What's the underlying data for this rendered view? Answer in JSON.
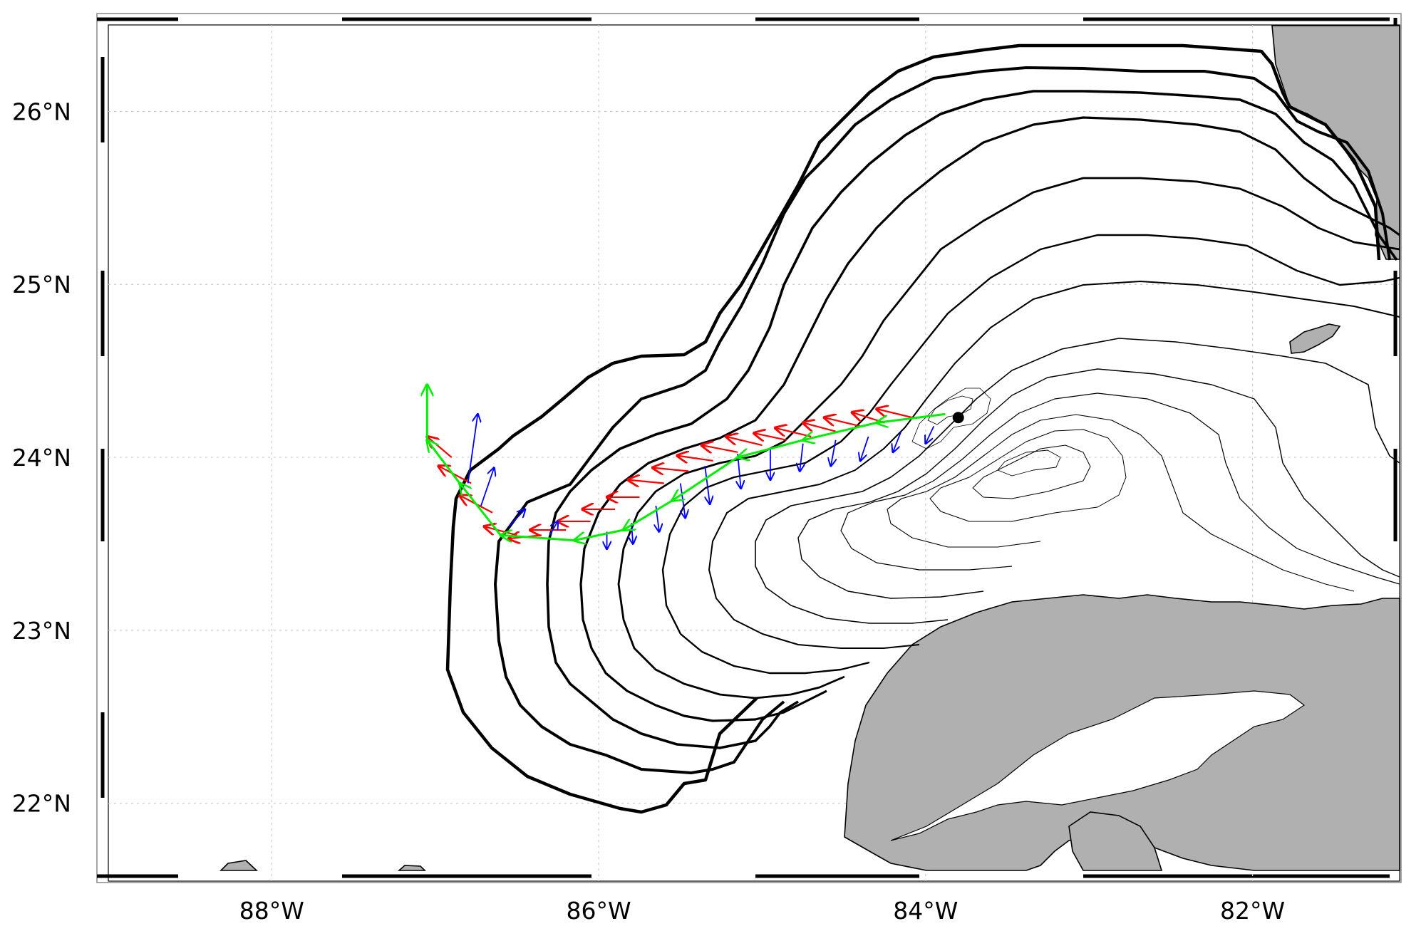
{
  "map": {
    "lon_range": [
      -89.0,
      -81.1
    ],
    "lat_range": [
      21.55,
      26.5
    ],
    "lon_ticks": [
      {
        "value": -88,
        "label": "88°W"
      },
      {
        "value": -86,
        "label": "86°W"
      },
      {
        "value": -84,
        "label": "84°W"
      },
      {
        "value": -82,
        "label": "82°W"
      }
    ],
    "lat_ticks": [
      {
        "value": 26,
        "label": "26°N"
      },
      {
        "value": 25,
        "label": "25°N"
      },
      {
        "value": 24,
        "label": "24°N"
      },
      {
        "value": 23,
        "label": "23°N"
      },
      {
        "value": 22,
        "label": "22°N"
      }
    ],
    "colors": {
      "land": "#b0b0b0",
      "contour": "#000000",
      "red_arrows": "#ff0000",
      "green_arrows": "#00ee00",
      "blue_arrows": "#0000ff",
      "gridline": "#cccccc"
    },
    "source_point": {
      "lon": -83.8,
      "lat": 24.23
    },
    "green_track": [
      [
        -83.88,
        24.25
      ],
      [
        -84.3,
        24.2
      ],
      [
        -84.75,
        24.1
      ],
      [
        -85.15,
        24.0
      ],
      [
        -85.55,
        23.75
      ],
      [
        -85.85,
        23.58
      ],
      [
        -86.15,
        23.52
      ],
      [
        -86.6,
        23.55
      ],
      [
        -86.85,
        23.85
      ],
      [
        -87.05,
        24.1
      ],
      [
        -87.05,
        24.42
      ]
    ],
    "red_arrows": [
      [
        -84.08,
        24.23,
        -0.22,
        0.05
      ],
      [
        -84.25,
        24.2,
        -0.2,
        0.06
      ],
      [
        -84.4,
        24.18,
        -0.22,
        0.05
      ],
      [
        -84.55,
        24.15,
        -0.2,
        0.05
      ],
      [
        -84.7,
        24.12,
        -0.22,
        0.05
      ],
      [
        -84.85,
        24.1,
        -0.2,
        0.04
      ],
      [
        -85.0,
        24.07,
        -0.22,
        0.05
      ],
      [
        -85.15,
        24.03,
        -0.22,
        0.04
      ],
      [
        -85.3,
        23.98,
        -0.22,
        0.03
      ],
      [
        -85.45,
        23.92,
        -0.22,
        0.02
      ],
      [
        -85.6,
        23.85,
        -0.22,
        0.02
      ],
      [
        -85.75,
        23.77,
        -0.2,
        0.0
      ],
      [
        -85.9,
        23.7,
        -0.2,
        0.0
      ],
      [
        -86.05,
        23.63,
        -0.2,
        0.0
      ],
      [
        -86.2,
        23.58,
        -0.22,
        0.0
      ],
      [
        -86.35,
        23.55,
        -0.2,
        -0.02
      ],
      [
        -86.5,
        23.55,
        -0.2,
        0.05
      ],
      [
        -86.65,
        23.68,
        -0.2,
        0.1
      ],
      [
        -86.78,
        23.85,
        -0.2,
        0.1
      ],
      [
        -86.9,
        24.0,
        -0.15,
        0.12
      ]
    ],
    "blue_arrows": [
      [
        -83.95,
        24.18,
        -0.05,
        -0.1
      ],
      [
        -84.15,
        24.15,
        -0.05,
        -0.12
      ],
      [
        -84.35,
        24.12,
        -0.05,
        -0.14
      ],
      [
        -84.55,
        24.1,
        -0.03,
        -0.15
      ],
      [
        -84.75,
        24.08,
        -0.02,
        -0.16
      ],
      [
        -84.95,
        24.05,
        0.0,
        -0.18
      ],
      [
        -85.15,
        24.02,
        0.02,
        -0.2
      ],
      [
        -85.35,
        23.95,
        0.03,
        -0.22
      ],
      [
        -85.5,
        23.85,
        0.03,
        -0.2
      ],
      [
        -85.65,
        23.72,
        0.02,
        -0.15
      ],
      [
        -85.8,
        23.62,
        0.01,
        -0.12
      ],
      [
        -85.95,
        23.57,
        0.0,
        -0.1
      ],
      [
        -86.3,
        23.55,
        0.05,
        0.08
      ],
      [
        -86.55,
        23.6,
        0.1,
        0.1
      ],
      [
        -86.72,
        23.72,
        0.08,
        0.22
      ],
      [
        -86.8,
        23.85,
        0.06,
        0.4
      ]
    ]
  }
}
